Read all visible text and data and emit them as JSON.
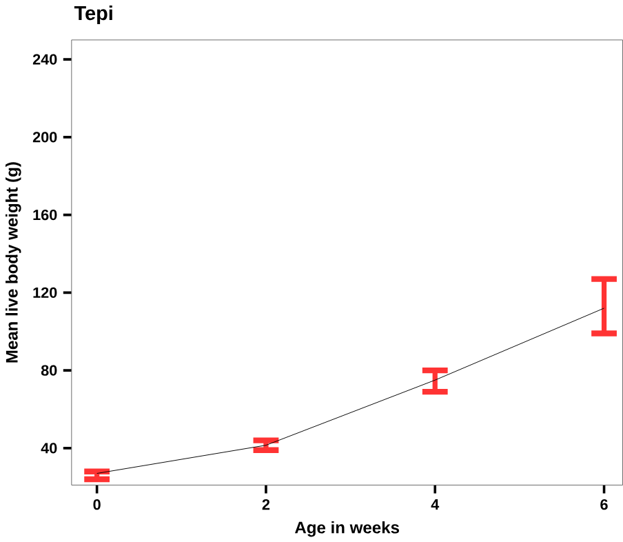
{
  "chart_data": {
    "type": "line",
    "title": "Tepi",
    "xlabel": "Age in weeks",
    "ylabel": "Mean live body weight (g)",
    "x": [
      0,
      2,
      4,
      6
    ],
    "series": [
      {
        "color": "#000000",
        "values": [
          27,
          41.5,
          75,
          112
        ],
        "errors": [
          [
            24,
            28
          ],
          [
            39,
            44
          ],
          [
            69,
            80
          ],
          [
            99,
            127
          ]
        ],
        "colors": [
          "#ff3333",
          "#ff3333",
          "#ff3333",
          "#ff3333"
        ]
      }
    ],
    "xlim": [
      -0.3,
      6.22
    ],
    "xticks": [
      0,
      2,
      4,
      6
    ],
    "ylim": [
      21,
      250
    ],
    "yticks": [
      40,
      80,
      120,
      160,
      200,
      240
    ],
    "grid": false,
    "marker": "none",
    "line_style": "solid"
  }
}
